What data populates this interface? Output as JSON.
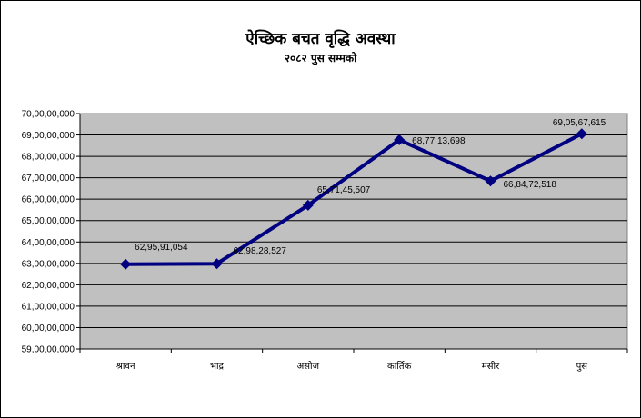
{
  "chart_data": {
    "type": "line",
    "title": "ऐच्छिक बचत वृद्धि अवस्था",
    "subtitle": "२०८२ पुस सम्मको",
    "categories": [
      "श्रावन",
      "भाद्र",
      "असोज",
      "कार्तिक",
      "मंसीर",
      "पुस"
    ],
    "series": [
      {
        "values": [
          629591054,
          629828527,
          657145507,
          687713698,
          668472518,
          690567615
        ],
        "data_labels": [
          "62,95,91,054",
          "62,98,28,527",
          "65,71,45,507",
          "68,77,13,698",
          "66,84,72,518",
          "69,05,67,615"
        ],
        "color": "#000080",
        "marker": "diamond"
      }
    ],
    "ylim": [
      590000000,
      700000000
    ],
    "ytick_values": [
      590000000,
      600000000,
      610000000,
      620000000,
      630000000,
      640000000,
      650000000,
      660000000,
      670000000,
      680000000,
      690000000,
      700000000
    ],
    "ytick_labels": [
      "59,00,00,000",
      "60,00,00,000",
      "61,00,00,000",
      "62,00,00,000",
      "63,00,00,000",
      "64,00,00,000",
      "65,00,00,000",
      "66,00,00,000",
      "67,00,00,000",
      "68,00,00,000",
      "69,00,00,000",
      "70,00,00,000"
    ],
    "grid": true,
    "plot_background": "#c0c0c0",
    "xlabel": "",
    "ylabel": ""
  }
}
